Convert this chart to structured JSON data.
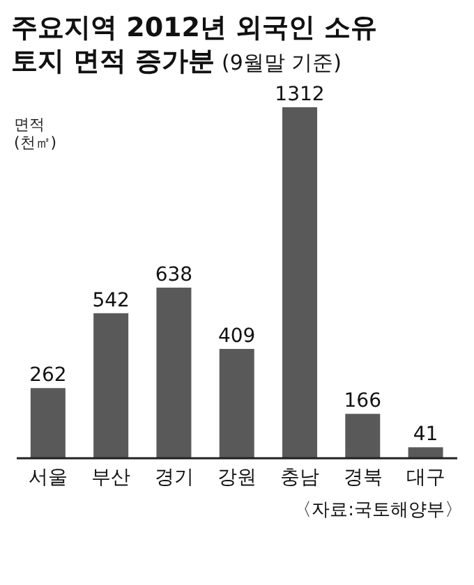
{
  "chart_data": {
    "type": "bar",
    "title": "주요지역 2012년 외국인 소유\n토지 면적 증가분",
    "subtitle": "(9월말 기준)",
    "ylabel": "면적 (천㎡)",
    "categories": [
      "서울",
      "부산",
      "경기",
      "강원",
      "충남",
      "경북",
      "대구"
    ],
    "values": [
      262,
      542,
      638,
      409,
      1312,
      166,
      41
    ],
    "color": "#595959",
    "data_labels": true,
    "annotations": [
      "〈자료:국토해양부〉"
    ]
  }
}
